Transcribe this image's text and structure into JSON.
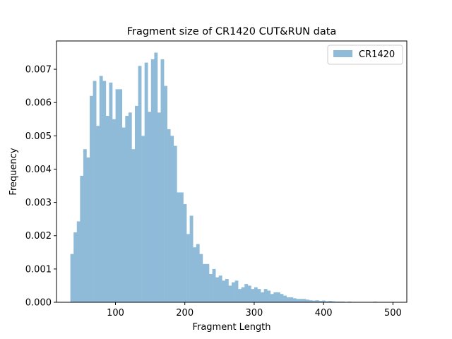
{
  "chart_data": {
    "type": "bar",
    "title": "Fragment size of CR1420 CUT&RUN data",
    "xlabel": "Fragment Length",
    "ylabel": "Frequency",
    "xlim": [
      15,
      520
    ],
    "ylim": [
      0,
      0.00785
    ],
    "xticks": [
      100,
      200,
      300,
      400,
      500
    ],
    "yticks": [
      0.0,
      0.001,
      0.002,
      0.003,
      0.004,
      0.005,
      0.006,
      0.007
    ],
    "ytick_labels": [
      "0.000",
      "0.001",
      "0.002",
      "0.003",
      "0.004",
      "0.005",
      "0.006",
      "0.007"
    ],
    "grid": false,
    "legend_position": "top-right",
    "bin_start": 35,
    "bin_width": 4.65,
    "series": [
      {
        "name": "CR1420",
        "color": "#8fbbd9",
        "values": [
          0.00145,
          0.0021,
          0.00243,
          0.0038,
          0.0046,
          0.00435,
          0.0062,
          0.00665,
          0.0053,
          0.0068,
          0.00665,
          0.0056,
          0.0066,
          0.0055,
          0.0064,
          0.0064,
          0.00525,
          0.0056,
          0.0057,
          0.0046,
          0.0059,
          0.0071,
          0.005,
          0.0072,
          0.00572,
          0.0073,
          0.0075,
          0.0057,
          0.0073,
          0.0065,
          0.0052,
          0.005,
          0.0047,
          0.0033,
          0.0033,
          0.00295,
          0.00205,
          0.0026,
          0.00165,
          0.00175,
          0.00145,
          0.00115,
          0.00115,
          0.00085,
          0.001,
          0.00075,
          0.0008,
          0.00065,
          0.0007,
          0.0005,
          0.0006,
          0.00065,
          0.0004,
          0.00045,
          0.00055,
          0.0005,
          0.0004,
          0.00045,
          0.0004,
          0.0003,
          0.0004,
          0.00035,
          0.00025,
          0.0003,
          0.0003,
          0.00025,
          0.0002,
          0.00015,
          0.00015,
          0.00012,
          0.0001,
          0.0001,
          0.0001,
          8e-05,
          6e-05,
          5e-05,
          6e-05,
          4e-05,
          5e-05,
          3e-05,
          4e-05,
          3e-05,
          2e-05,
          2e-05,
          2e-05,
          1e-05,
          2e-05,
          1e-05,
          1e-05,
          1e-05,
          0.0,
          1e-05,
          1e-05,
          0.0,
          2e-05,
          0.0,
          1e-05,
          0.0,
          0.0,
          1e-05
        ]
      }
    ]
  }
}
